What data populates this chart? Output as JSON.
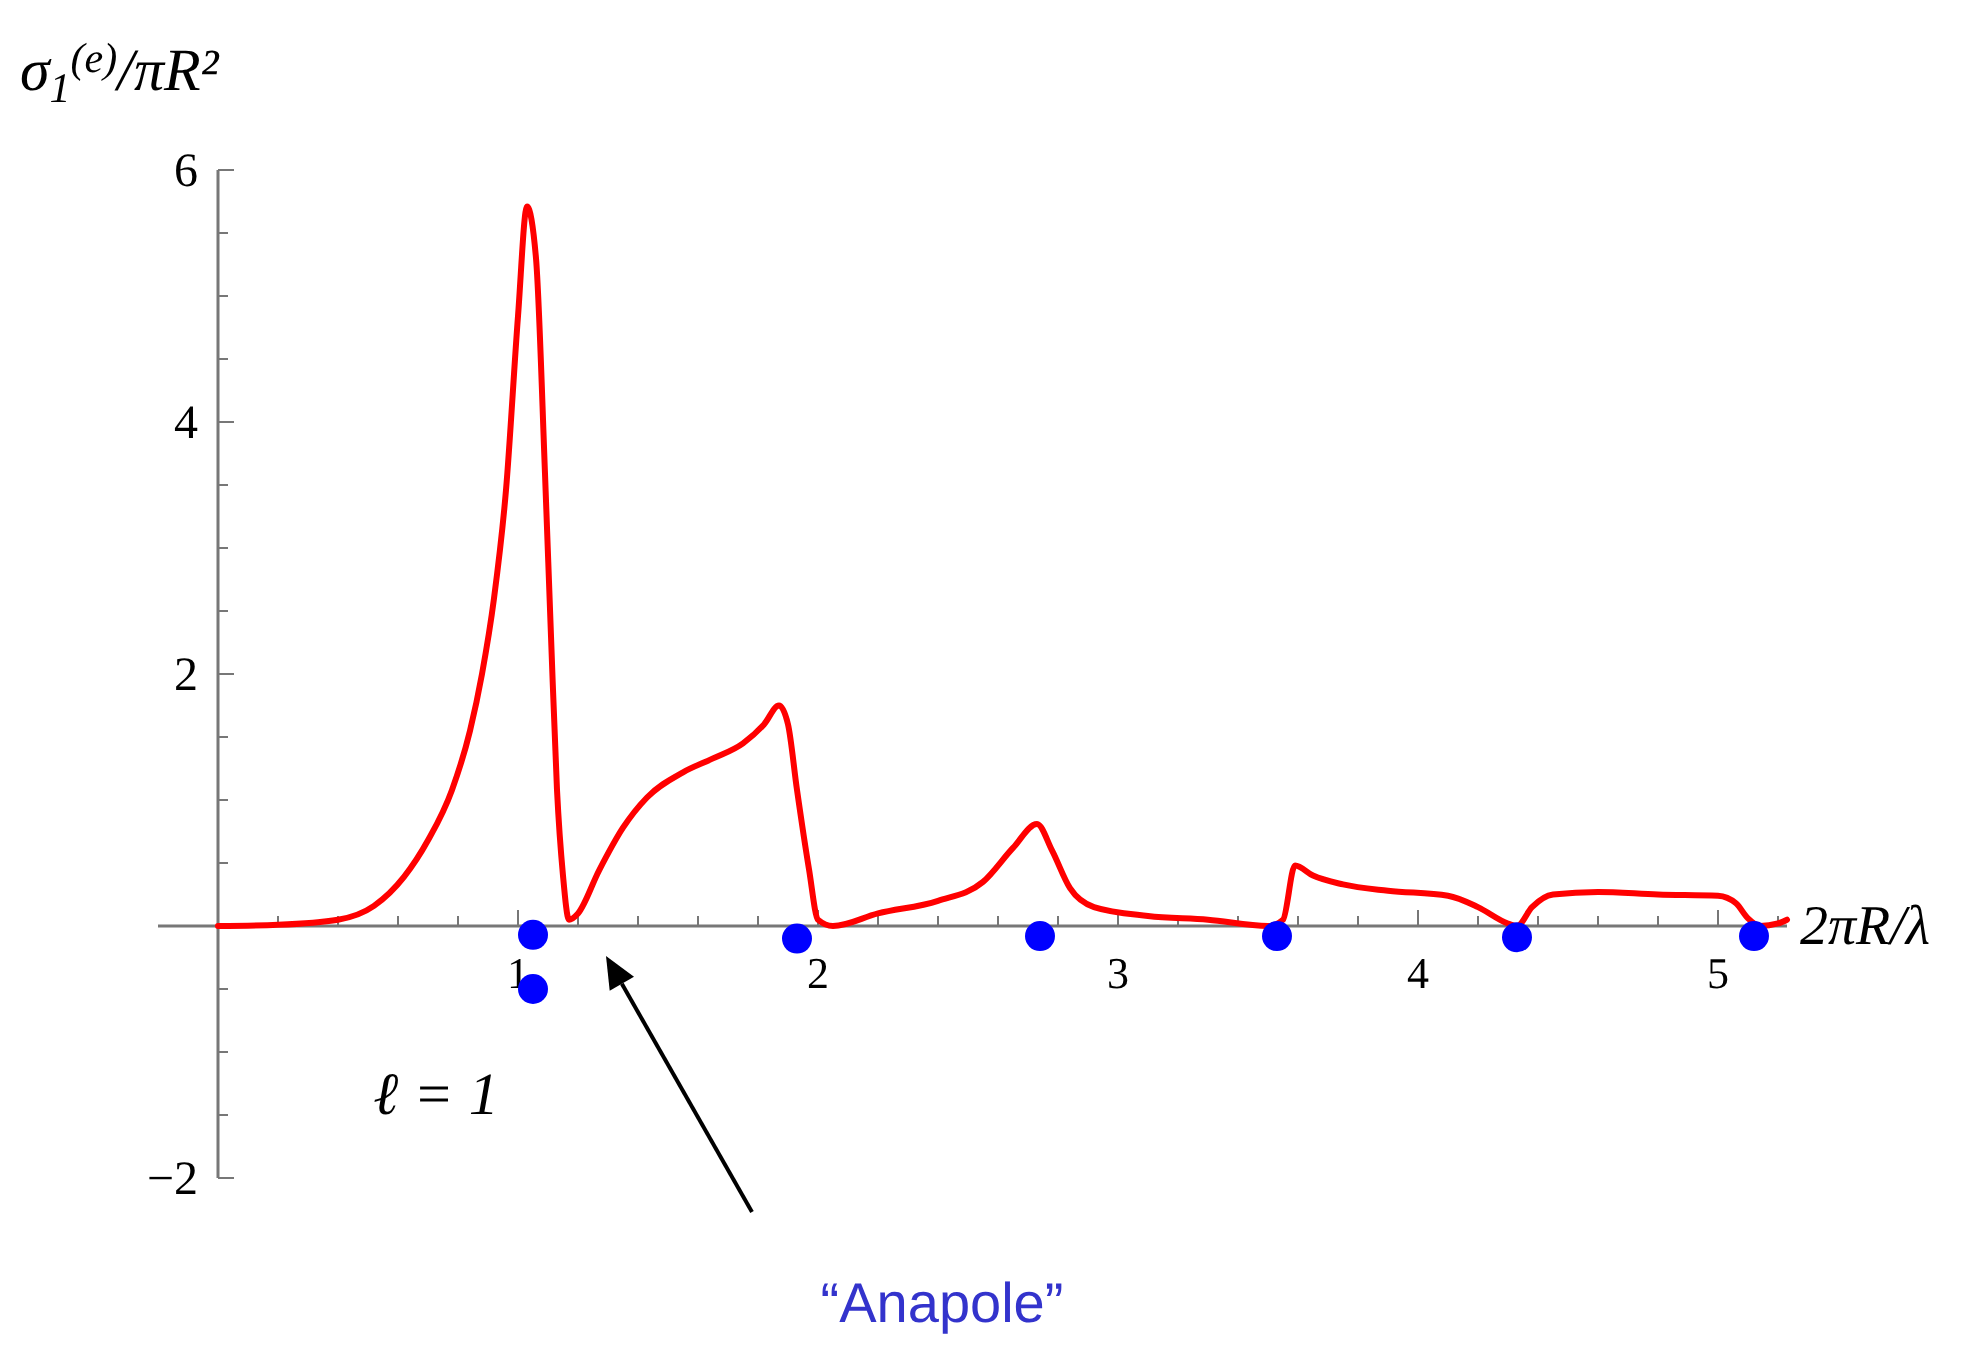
{
  "chart_data": {
    "type": "line",
    "xlabel": "2πR/λ",
    "ylabel": "σ$_{1}$$^{(e)}$/πR²",
    "xlim": [
      -0.2,
      5.23
    ],
    "ylim": [
      -2,
      6
    ],
    "xticks": [
      {
        "value": 0.2,
        "label": null
      },
      {
        "value": 0.4,
        "label": null
      },
      {
        "value": 0.6,
        "label": null
      },
      {
        "value": 0.8,
        "label": null
      },
      1,
      {
        "value": 1.2,
        "label": null
      },
      {
        "value": 1.4,
        "label": null
      },
      {
        "value": 1.6,
        "label": null
      },
      {
        "value": 1.8,
        "label": null
      },
      2,
      {
        "value": 2.2,
        "label": null
      },
      {
        "value": 2.4,
        "label": null
      },
      {
        "value": 2.6,
        "label": null
      },
      {
        "value": 2.8,
        "label": null
      },
      3,
      {
        "value": 3.2,
        "label": null
      },
      {
        "value": 3.4,
        "label": null
      },
      {
        "value": 3.6,
        "label": null
      },
      {
        "value": 3.8,
        "label": null
      },
      4,
      {
        "value": 4.2,
        "label": null
      },
      {
        "value": 4.4,
        "label": null
      },
      {
        "value": 4.6,
        "label": null
      },
      {
        "value": 4.8,
        "label": null
      },
      5,
      {
        "value": 5.2,
        "label": null
      }
    ],
    "yticks": [
      {
        "value": -2,
        "label": "−2"
      },
      {
        "value": -1.5,
        "label": null
      },
      {
        "value": -1,
        "label": null
      },
      {
        "value": -0.5,
        "label": null
      },
      {
        "value": 0.5,
        "label": null
      },
      {
        "value": 1,
        "label": null
      },
      {
        "value": 1.5,
        "label": null
      },
      2,
      {
        "value": 2.5,
        "label": null
      },
      {
        "value": 3,
        "label": null
      },
      {
        "value": 3.5,
        "label": null
      },
      4,
      {
        "value": 4.5,
        "label": null
      },
      {
        "value": 5,
        "label": null
      },
      {
        "value": 5.5,
        "label": null
      },
      6
    ],
    "grid": false,
    "series": [
      {
        "color": "#ff0000",
        "x": [
          0,
          0.2,
          0.4,
          0.52,
          0.62,
          0.7,
          0.78,
          0.84,
          0.88,
          0.92,
          0.96,
          1.0,
          1.03,
          1.06,
          1.09,
          1.11,
          1.13,
          1.15,
          1.17,
          1.2,
          1.27,
          1.35,
          1.43,
          1.55,
          1.65,
          1.75,
          1.82,
          1.87,
          1.9,
          1.93,
          1.97,
          2.0,
          2.05,
          2.2,
          2.4,
          2.55,
          2.65,
          2.73,
          2.78,
          2.84,
          2.92,
          3.1,
          3.3,
          3.5,
          3.55,
          3.59,
          3.65,
          3.75,
          3.9,
          4.1,
          4.2,
          4.3,
          4.33,
          4.38,
          4.45,
          4.6,
          4.8,
          5.0,
          5.06,
          5.1,
          5.14,
          5.2,
          5.23
        ],
        "values": [
          0,
          0.01,
          0.05,
          0.16,
          0.39,
          0.68,
          1.08,
          1.55,
          2.0,
          2.6,
          3.46,
          4.84,
          5.71,
          5.3,
          3.59,
          2.3,
          1.08,
          0.4,
          0.05,
          0.1,
          0.44,
          0.78,
          1.02,
          1.22,
          1.33,
          1.45,
          1.6,
          1.75,
          1.6,
          1.08,
          0.45,
          0.05,
          0,
          0.1,
          0.2,
          0.35,
          0.62,
          0.81,
          0.6,
          0.3,
          0.15,
          0.08,
          0.05,
          0,
          0.05,
          0.48,
          0.4,
          0.33,
          0.28,
          0.24,
          0.15,
          0.02,
          0,
          0.15,
          0.25,
          0.27,
          0.25,
          0.24,
          0.18,
          0.06,
          0,
          0.02,
          0.05
        ]
      },
      {
        "type": "scatter",
        "color": "#0000ff",
        "marker": "circle",
        "x": [
          1.05,
          1.05,
          1.93,
          2.74,
          3.53,
          4.33,
          5.12
        ],
        "values": [
          -0.07,
          -0.5,
          -0.1,
          -0.08,
          -0.08,
          -0.09,
          -0.08
        ]
      }
    ],
    "annotations": [
      "ℓ = 1",
      "“Anapole”"
    ]
  }
}
